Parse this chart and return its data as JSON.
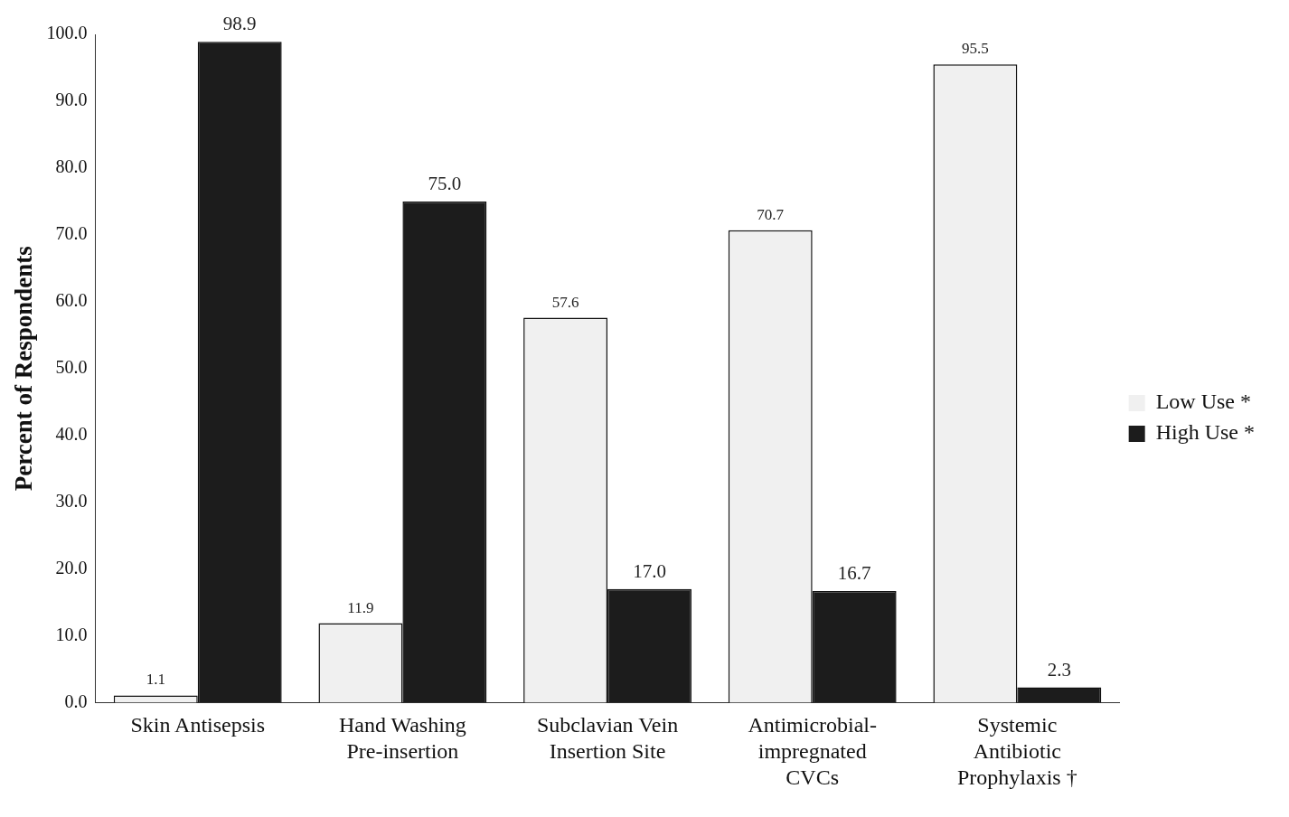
{
  "chart_data": {
    "type": "bar",
    "ylabel": "Percent of Respondents",
    "categories": [
      "Skin Antisepsis",
      "Hand Washing\nPre-insertion",
      "Subclavian Vein\nInsertion Site",
      "Antimicrobial-\nimpregnated\nCVCs",
      "Systemic\nAntibiotic\nProphylaxis †"
    ],
    "series": [
      {
        "name": "Low Use *",
        "color": "#f0f0f0",
        "values": [
          1.1,
          11.9,
          57.6,
          70.7,
          95.5
        ],
        "value_labels": [
          "1.1",
          "11.9",
          "57.6",
          "70.7",
          "95.5"
        ]
      },
      {
        "name": "High Use *",
        "color": "#1c1c1c",
        "values": [
          98.9,
          75.0,
          17.0,
          16.7,
          2.3
        ],
        "value_labels": [
          "98.9",
          "75.0",
          "17.0",
          "16.7",
          "2.3"
        ]
      }
    ],
    "ylim": [
      0,
      100
    ],
    "yticks": [
      {
        "value": 0,
        "label": "0.0"
      },
      {
        "value": 10,
        "label": "10.0"
      },
      {
        "value": 20,
        "label": "20.0"
      },
      {
        "value": 30,
        "label": "30.0"
      },
      {
        "value": 40,
        "label": "40.0"
      },
      {
        "value": 50,
        "label": "50.0"
      },
      {
        "value": 60,
        "label": "60.0"
      },
      {
        "value": 70,
        "label": "70.0"
      },
      {
        "value": 80,
        "label": "80.0"
      },
      {
        "value": 90,
        "label": "90.0"
      },
      {
        "value": 100,
        "label": "100.0"
      }
    ],
    "grid": false,
    "legend": "right"
  }
}
